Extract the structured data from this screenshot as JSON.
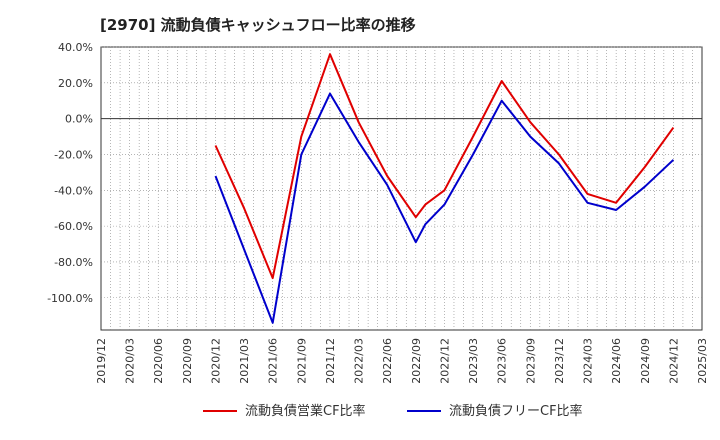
{
  "chart_data": {
    "type": "line",
    "title": "[2970]  流動負債キャッシュフロー比率の推移",
    "xlabel": "",
    "ylabel": "",
    "ylim": [
      -118,
      40
    ],
    "y_ticks": [
      "40.0%",
      "20.0%",
      "0.0%",
      "-20.0%",
      "-40.0%",
      "-60.0%",
      "-80.0%",
      "-100.0%"
    ],
    "y_tick_values": [
      40,
      20,
      0,
      -20,
      -40,
      -60,
      -80,
      -100
    ],
    "x_ticks": [
      "2019/12",
      "2020/03",
      "2020/06",
      "2020/09",
      "2020/12",
      "2021/03",
      "2021/06",
      "2021/09",
      "2021/12",
      "2022/03",
      "2022/06",
      "2022/09",
      "2022/12",
      "2023/03",
      "2023/06",
      "2023/09",
      "2023/12",
      "2024/03",
      "2024/06",
      "2024/09",
      "2024/12",
      "2025/03"
    ],
    "grid": true,
    "legend_position": "bottom",
    "series": [
      {
        "name": "流動負債営業CF比率",
        "color": "#e00000",
        "x": [
          "2020/12",
          "2021/03",
          "2021/06",
          "2021/09",
          "2021/12",
          "2022/03",
          "2022/06",
          "2022/09",
          "2022/10",
          "2022/12",
          "2023/03",
          "2023/06",
          "2023/09",
          "2023/12",
          "2024/03",
          "2024/06",
          "2024/09",
          "2024/12"
        ],
        "values": [
          -15,
          -50,
          -89,
          -10,
          36,
          -2,
          -32,
          -55,
          -48,
          -40,
          -10,
          21,
          -2,
          -20,
          -42,
          -47,
          -27,
          -5
        ]
      },
      {
        "name": "流動負債フリーCF比率",
        "color": "#0000cc",
        "x": [
          "2020/12",
          "2021/03",
          "2021/06",
          "2021/09",
          "2021/12",
          "2022/03",
          "2022/06",
          "2022/09",
          "2022/10",
          "2022/12",
          "2023/03",
          "2023/06",
          "2023/09",
          "2023/12",
          "2024/03",
          "2024/06",
          "2024/09",
          "2024/12"
        ],
        "values": [
          -32,
          -73,
          -114,
          -20,
          14,
          -13,
          -37,
          -69,
          -59,
          -48,
          -20,
          10,
          -10,
          -25,
          -47,
          -51,
          -38,
          -23
        ]
      }
    ]
  }
}
